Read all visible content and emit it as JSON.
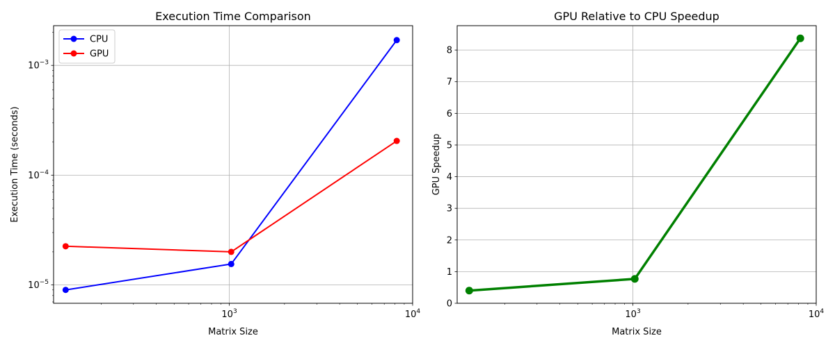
{
  "colors": {
    "cpu": "#0000ff",
    "gpu": "#ff0000",
    "speedup": "#008000",
    "grid": "#b0b0b0"
  },
  "chart_data": [
    {
      "type": "line",
      "title": "Execution Time Comparison",
      "xlabel": "Matrix Size",
      "ylabel": "Execution Time (seconds)",
      "xscale": "log",
      "yscale": "log",
      "xlim": [
        110,
        10000
      ],
      "ylim": [
        6.8e-06,
        0.0023
      ],
      "xticks": [
        {
          "value": 1000,
          "base": "10",
          "exp": "3"
        },
        {
          "value": 10000,
          "base": "10",
          "exp": "4"
        }
      ],
      "yticks": [
        {
          "value": 1e-05,
          "base": "10",
          "exp": "−5"
        },
        {
          "value": 0.0001,
          "base": "10",
          "exp": "−4"
        },
        {
          "value": 0.001,
          "base": "10",
          "exp": "−3"
        }
      ],
      "grid": true,
      "legend": "top-left",
      "x": [
        128,
        1024,
        8192
      ],
      "series": [
        {
          "name": "CPU",
          "color": "#0000ff",
          "values": [
            9e-06,
            1.55e-05,
            0.0017
          ]
        },
        {
          "name": "GPU",
          "color": "#ff0000",
          "values": [
            2.25e-05,
            2e-05,
            0.000205
          ]
        }
      ]
    },
    {
      "type": "line",
      "title": "GPU Relative to CPU Speedup",
      "xlabel": "Matrix Size",
      "ylabel": "GPU Speedup",
      "xscale": "log",
      "yscale": "linear",
      "xlim": [
        110,
        10000
      ],
      "ylim": [
        0,
        8.77
      ],
      "xticks": [
        {
          "value": 1000,
          "base": "10",
          "exp": "3"
        },
        {
          "value": 10000,
          "base": "10",
          "exp": "4"
        }
      ],
      "yticks": [
        {
          "value": 0,
          "label": "0"
        },
        {
          "value": 1,
          "label": "1"
        },
        {
          "value": 2,
          "label": "2"
        },
        {
          "value": 3,
          "label": "3"
        },
        {
          "value": 4,
          "label": "4"
        },
        {
          "value": 5,
          "label": "5"
        },
        {
          "value": 6,
          "label": "6"
        },
        {
          "value": 7,
          "label": "7"
        },
        {
          "value": 8,
          "label": "8"
        }
      ],
      "grid": true,
      "x": [
        128,
        1024,
        8192
      ],
      "series": [
        {
          "color": "#008000",
          "values": [
            0.4,
            0.77,
            8.37
          ]
        }
      ]
    }
  ]
}
